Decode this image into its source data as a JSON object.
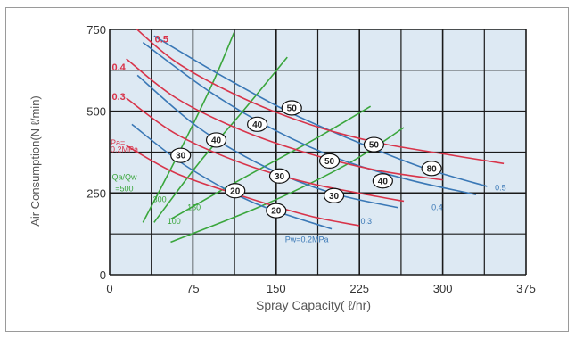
{
  "chart_data": {
    "type": "line",
    "title": "",
    "xlabel": "Spray Capacity( ℓ/hr)",
    "ylabel": "Air Consumption(N ℓ/min)",
    "xlim": [
      0,
      375
    ],
    "ylim": [
      0,
      750
    ],
    "x_ticks": [
      "0",
      "75",
      "150",
      "225",
      "300",
      "375"
    ],
    "y_ticks": [
      "0",
      "250",
      "500",
      "750"
    ],
    "grid": true,
    "colors": {
      "grid": "#1a1a1a",
      "plot_bg": "#dde9f3",
      "red": "#d8344a",
      "blue": "#3a78b6",
      "green": "#3aa63c"
    },
    "red_group": {
      "labels": [
        "0.5",
        "0.4",
        "0.3"
      ],
      "pa_label": [
        "Pa=",
        "0.2MPa"
      ],
      "series": [
        {
          "x": [
            15,
            60,
            120,
            180,
            240,
            300,
            355
          ],
          "y": [
            780,
            650,
            540,
            460,
            405,
            370,
            340
          ]
        },
        {
          "x": [
            15,
            60,
            120,
            180,
            240,
            300
          ],
          "y": [
            660,
            540,
            440,
            370,
            320,
            290
          ]
        },
        {
          "x": [
            15,
            60,
            120,
            180,
            240,
            265
          ],
          "y": [
            540,
            430,
            340,
            280,
            240,
            225
          ]
        },
        {
          "x": [
            15,
            60,
            120,
            180,
            225
          ],
          "y": [
            395,
            310,
            240,
            180,
            150
          ]
        }
      ]
    },
    "blue_group": {
      "labels": [
        "0.5",
        "0.4",
        "0.3"
      ],
      "pw_label": "Pw=0.2MPa",
      "series": [
        {
          "x": [
            40,
            100,
            160,
            220,
            280,
            340
          ],
          "y": [
            730,
            610,
            500,
            410,
            330,
            270
          ]
        },
        {
          "x": [
            30,
            90,
            150,
            210,
            270,
            330
          ],
          "y": [
            710,
            560,
            440,
            350,
            290,
            245
          ]
        },
        {
          "x": [
            25,
            80,
            140,
            200,
            260
          ],
          "y": [
            610,
            450,
            330,
            250,
            205
          ]
        },
        {
          "x": [
            20,
            70,
            130,
            200
          ],
          "y": [
            460,
            330,
            220,
            140
          ]
        }
      ]
    },
    "green_group": {
      "labels": [
        "500",
        "300",
        "150",
        "100"
      ],
      "qa_label": [
        "Qa/Qw",
        "=500"
      ],
      "series": [
        {
          "x": [
            30,
            62,
            92,
            112
          ],
          "y": [
            160,
            370,
            580,
            740
          ]
        },
        {
          "x": [
            40,
            80,
            120,
            160
          ],
          "y": [
            160,
            340,
            500,
            665
          ]
        },
        {
          "x": [
            55,
            120,
            185,
            235
          ],
          "y": [
            170,
            295,
            415,
            515
          ]
        },
        {
          "x": [
            55,
            140,
            215,
            265
          ],
          "y": [
            100,
            215,
            340,
            450
          ]
        }
      ]
    },
    "oval_labels": [
      {
        "text": "50",
        "x": 164,
        "y": 510
      },
      {
        "text": "40",
        "x": 133,
        "y": 460
      },
      {
        "text": "40",
        "x": 96,
        "y": 412
      },
      {
        "text": "30",
        "x": 64,
        "y": 365
      },
      {
        "text": "50",
        "x": 198,
        "y": 348
      },
      {
        "text": "50",
        "x": 238,
        "y": 398
      },
      {
        "text": "80",
        "x": 290,
        "y": 325
      },
      {
        "text": "30",
        "x": 153,
        "y": 302
      },
      {
        "text": "20",
        "x": 113,
        "y": 257
      },
      {
        "text": "40",
        "x": 246,
        "y": 287
      },
      {
        "text": "30",
        "x": 202,
        "y": 242
      },
      {
        "text": "20",
        "x": 150,
        "y": 196
      }
    ]
  }
}
